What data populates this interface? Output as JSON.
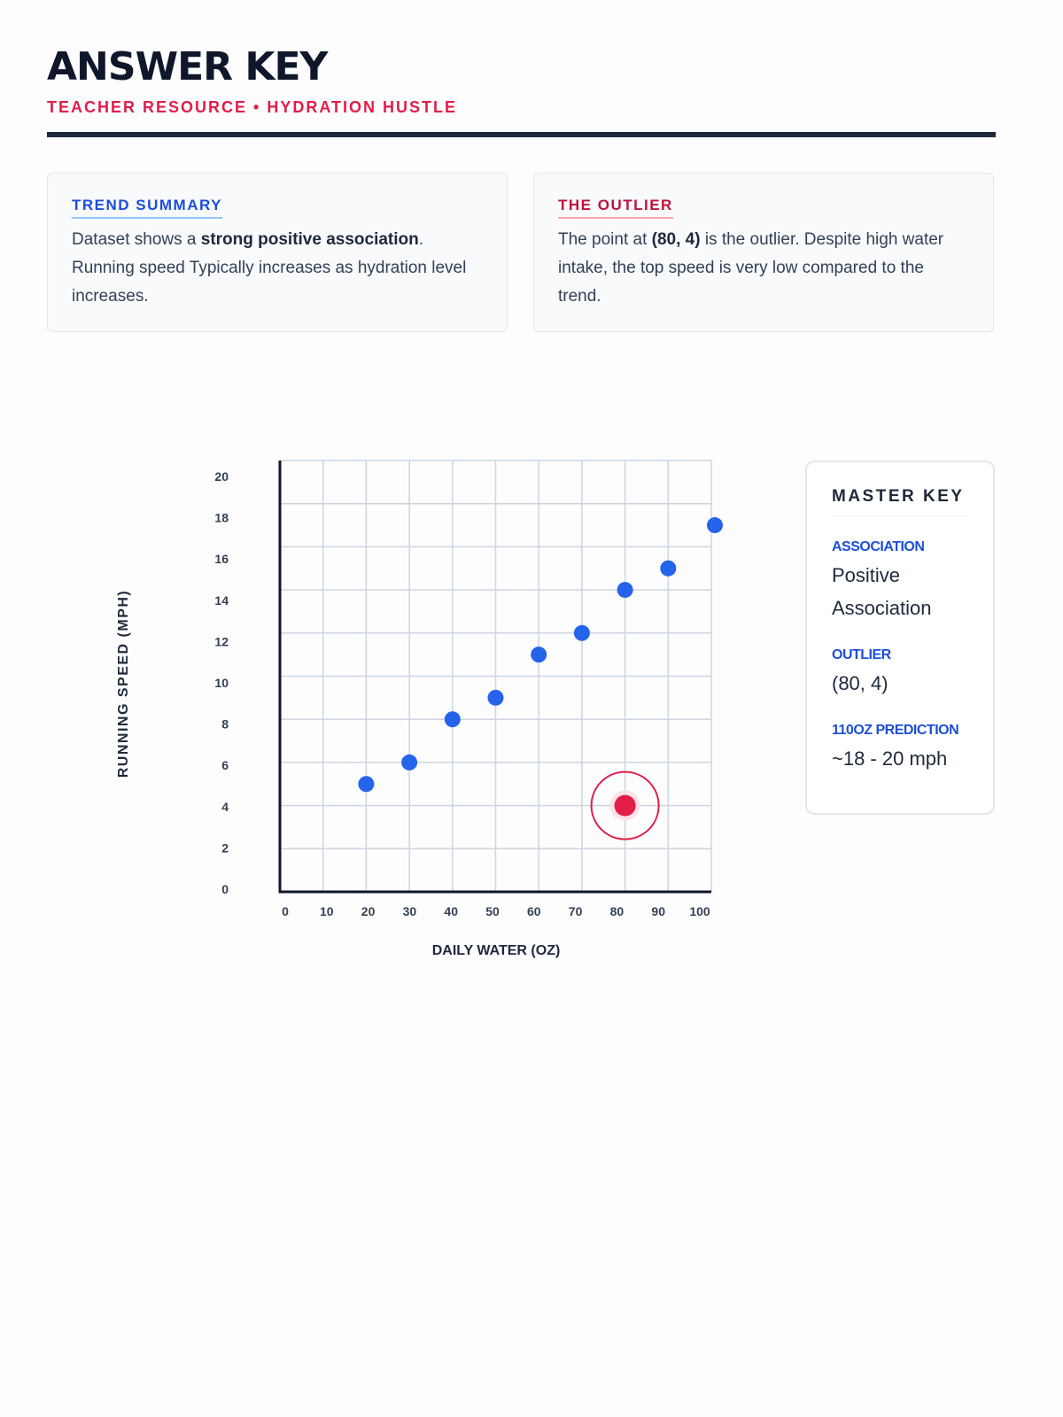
{
  "header": {
    "title": "ANSWER KEY",
    "subtitle": "TEACHER RESOURCE • HYDRATION HUSTLE"
  },
  "trend_card": {
    "heading": "TREND SUMMARY",
    "text_1": "Dataset shows a ",
    "text_bold": "strong positive association",
    "text_2": ". Running speed Typically increases as hydration level increases."
  },
  "outlier_card": {
    "heading": "THE OUTLIER",
    "text_1": "The point at ",
    "text_bold": "(80, 4)",
    "text_2": " is the outlier. Despite high water intake, the top speed is very low compared to the trend."
  },
  "master_key": {
    "title": "MASTER KEY",
    "items": [
      {
        "label": "ASSOCIATION",
        "value": "Positive Association"
      },
      {
        "label": "OUTLIER",
        "value": "(80, 4)"
      },
      {
        "label": "110OZ PREDICTION",
        "value": "~18 - 20 mph"
      }
    ]
  },
  "chart_data": {
    "type": "scatter",
    "xlabel": "DAILY WATER (OZ)",
    "ylabel": "RUNNING SPEED (MPH)",
    "xlim": [
      0,
      100
    ],
    "ylim": [
      0,
      20
    ],
    "x_ticks": [
      "0",
      "10",
      "20",
      "30",
      "40",
      "50",
      "60",
      "70",
      "80",
      "90",
      "100"
    ],
    "y_ticks": [
      "0",
      "2",
      "4",
      "6",
      "8",
      "10",
      "12",
      "14",
      "16",
      "18",
      "20"
    ],
    "grid": true,
    "points": [
      {
        "x": 20,
        "y": 5
      },
      {
        "x": 30,
        "y": 6
      },
      {
        "x": 40,
        "y": 8
      },
      {
        "x": 50,
        "y": 9
      },
      {
        "x": 60,
        "y": 11
      },
      {
        "x": 70,
        "y": 12
      },
      {
        "x": 80,
        "y": 14
      },
      {
        "x": 90,
        "y": 15
      },
      {
        "x": 100,
        "y": 17
      }
    ],
    "outlier": {
      "x": 80,
      "y": 4
    },
    "colors": {
      "point": "#2563eb",
      "outlier": "#e11d48",
      "grid": "#cbd5e1",
      "axis": "#0f172a"
    }
  }
}
